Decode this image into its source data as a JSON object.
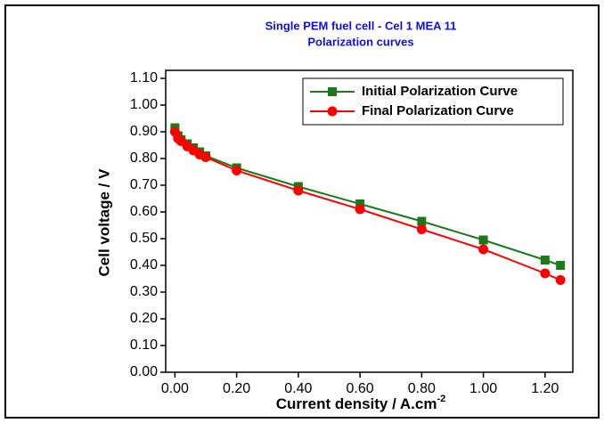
{
  "chart_data": {
    "type": "line",
    "title": "Single PEM fuel cell - Cel 1 MEA 11",
    "subtitle": "Polarization curves",
    "xlabel": "Current density / A.cm",
    "xlabel_sup": "-2",
    "ylabel": "Cell voltage / V",
    "x": [
      0,
      0.01,
      0.02,
      0.04,
      0.06,
      0.08,
      0.1,
      0.2,
      0.4,
      0.6,
      0.8,
      1.0,
      1.2,
      1.25
    ],
    "series": [
      {
        "name": "Initial Polarization Curve",
        "color": "#1a7a1a",
        "marker": "square",
        "values": [
          0.915,
          0.885,
          0.87,
          0.855,
          0.84,
          0.825,
          0.81,
          0.765,
          0.695,
          0.63,
          0.565,
          0.495,
          0.42,
          0.4
        ]
      },
      {
        "name": "Final Polarization Curve",
        "color": "#ff0000",
        "marker": "circle",
        "values": [
          0.9,
          0.875,
          0.865,
          0.845,
          0.83,
          0.815,
          0.805,
          0.755,
          0.68,
          0.61,
          0.535,
          0.46,
          0.37,
          0.345
        ]
      }
    ],
    "xlim": [
      -0.03,
      1.29
    ],
    "ylim": [
      0,
      1.13
    ],
    "xticks": [
      {
        "value": 0,
        "label": "0.00"
      },
      {
        "value": 0.2,
        "label": "0.20"
      },
      {
        "value": 0.4,
        "label": "0.40"
      },
      {
        "value": 0.6,
        "label": "0.60"
      },
      {
        "value": 0.8,
        "label": "0.80"
      },
      {
        "value": 1.0,
        "label": "1.00"
      },
      {
        "value": 1.2,
        "label": "1.20"
      }
    ],
    "yticks": [
      {
        "value": 0,
        "label": "0.00"
      },
      {
        "value": 0.1,
        "label": "0.10"
      },
      {
        "value": 0.2,
        "label": "0.20"
      },
      {
        "value": 0.3,
        "label": "0.30"
      },
      {
        "value": 0.4,
        "label": "0.40"
      },
      {
        "value": 0.5,
        "label": "0.50"
      },
      {
        "value": 0.6,
        "label": "0.60"
      },
      {
        "value": 0.7,
        "label": "0.70"
      },
      {
        "value": 0.8,
        "label": "0.80"
      },
      {
        "value": 0.9,
        "label": "0.90"
      },
      {
        "value": 1.0,
        "label": "1.00"
      },
      {
        "value": 1.1,
        "label": "1.10"
      }
    ],
    "title_color": "#1010e0",
    "legend": "upper right",
    "grid": false
  }
}
